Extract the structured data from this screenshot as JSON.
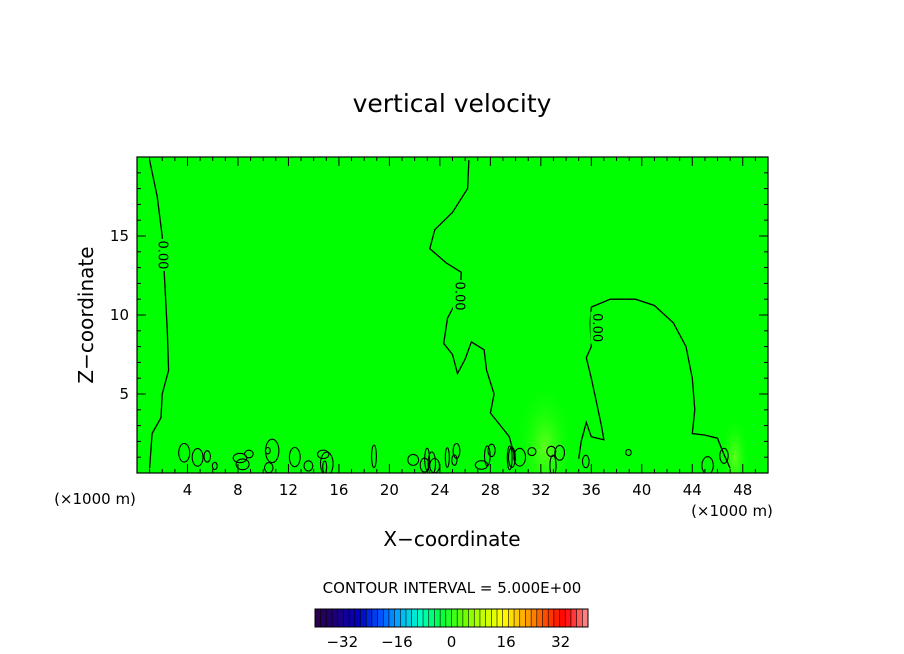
{
  "chart_data": {
    "type": "heatmap",
    "title": "vertical velocity",
    "xlabel": "X−coordinate",
    "ylabel": "Z−coordinate",
    "x_unit_left": "(×1000 m)",
    "x_unit_right": "(×1000 m)",
    "xlim": [
      0,
      50
    ],
    "ylim": [
      0,
      20
    ],
    "x_ticks": [
      4,
      8,
      12,
      16,
      20,
      24,
      28,
      32,
      36,
      40,
      44,
      48
    ],
    "y_ticks": [
      5,
      10,
      15
    ],
    "field_color": "#00ff00",
    "contour_interval_text": "CONTOUR INTERVAL = 5.000E+00",
    "contour_labels": [
      {
        "text": "0.00",
        "x": 2.0,
        "y": 13.8
      },
      {
        "text": "0.00",
        "x": 25.5,
        "y": 11.2
      },
      {
        "text": "0.00",
        "x": 36.4,
        "y": 9.2
      }
    ],
    "zero_contours": [
      [
        [
          1.0,
          19.8
        ],
        [
          1.6,
          17.5
        ],
        [
          2.0,
          15.0
        ],
        [
          2.2,
          12.0
        ],
        [
          2.4,
          9.0
        ],
        [
          2.5,
          6.5
        ],
        [
          2.0,
          5.0
        ],
        [
          1.9,
          3.5
        ],
        [
          1.2,
          2.5
        ],
        [
          1.0,
          0.3
        ]
      ],
      [
        [
          26.3,
          19.8
        ],
        [
          26.2,
          18.0
        ],
        [
          25.0,
          16.5
        ],
        [
          23.6,
          15.4
        ],
        [
          23.2,
          14.2
        ],
        [
          24.5,
          13.3
        ],
        [
          25.7,
          12.7
        ],
        [
          25.6,
          11.3
        ],
        [
          24.6,
          9.8
        ],
        [
          24.3,
          8.2
        ],
        [
          25.0,
          7.5
        ],
        [
          25.4,
          6.3
        ],
        [
          26.0,
          7.2
        ],
        [
          26.5,
          8.3
        ],
        [
          27.5,
          7.8
        ],
        [
          27.7,
          6.5
        ],
        [
          28.3,
          5.0
        ],
        [
          28.0,
          3.8
        ],
        [
          28.8,
          3.0
        ],
        [
          29.5,
          2.3
        ],
        [
          30.0,
          0.8
        ]
      ],
      [
        [
          36.0,
          10.5
        ],
        [
          37.5,
          11.0
        ],
        [
          39.5,
          11.0
        ],
        [
          41.0,
          10.6
        ],
        [
          42.5,
          9.5
        ],
        [
          43.5,
          8.0
        ],
        [
          44.0,
          6.0
        ],
        [
          44.2,
          4.0
        ],
        [
          44.0,
          2.5
        ],
        [
          45.0,
          2.4
        ],
        [
          46.0,
          2.2
        ],
        [
          46.5,
          1.2
        ],
        [
          47.0,
          0.3
        ]
      ],
      [
        [
          36.0,
          10.5
        ],
        [
          35.9,
          9.5
        ],
        [
          36.0,
          8.0
        ],
        [
          35.6,
          7.3
        ],
        [
          36.0,
          6.0
        ],
        [
          36.4,
          4.5
        ],
        [
          36.8,
          3.0
        ],
        [
          37.0,
          2.1
        ],
        [
          36.0,
          2.3
        ],
        [
          35.6,
          3.2
        ],
        [
          35.2,
          2.0
        ],
        [
          35.0,
          0.9
        ]
      ]
    ],
    "colorbar": {
      "tick_labels": [
        "−32",
        "−16",
        "0",
        "16",
        "32"
      ],
      "tick_values": [
        -32,
        -16,
        0,
        16,
        32
      ],
      "range": [
        -40,
        40
      ],
      "colors": [
        "#2a0050",
        "#1a0080",
        "#0000c0",
        "#0050ff",
        "#00b0ff",
        "#00ffc0",
        "#00ff40",
        "#60ff00",
        "#c0ff00",
        "#ffff00",
        "#ffb000",
        "#ff5000",
        "#ff0000",
        "#ff8080"
      ]
    }
  }
}
